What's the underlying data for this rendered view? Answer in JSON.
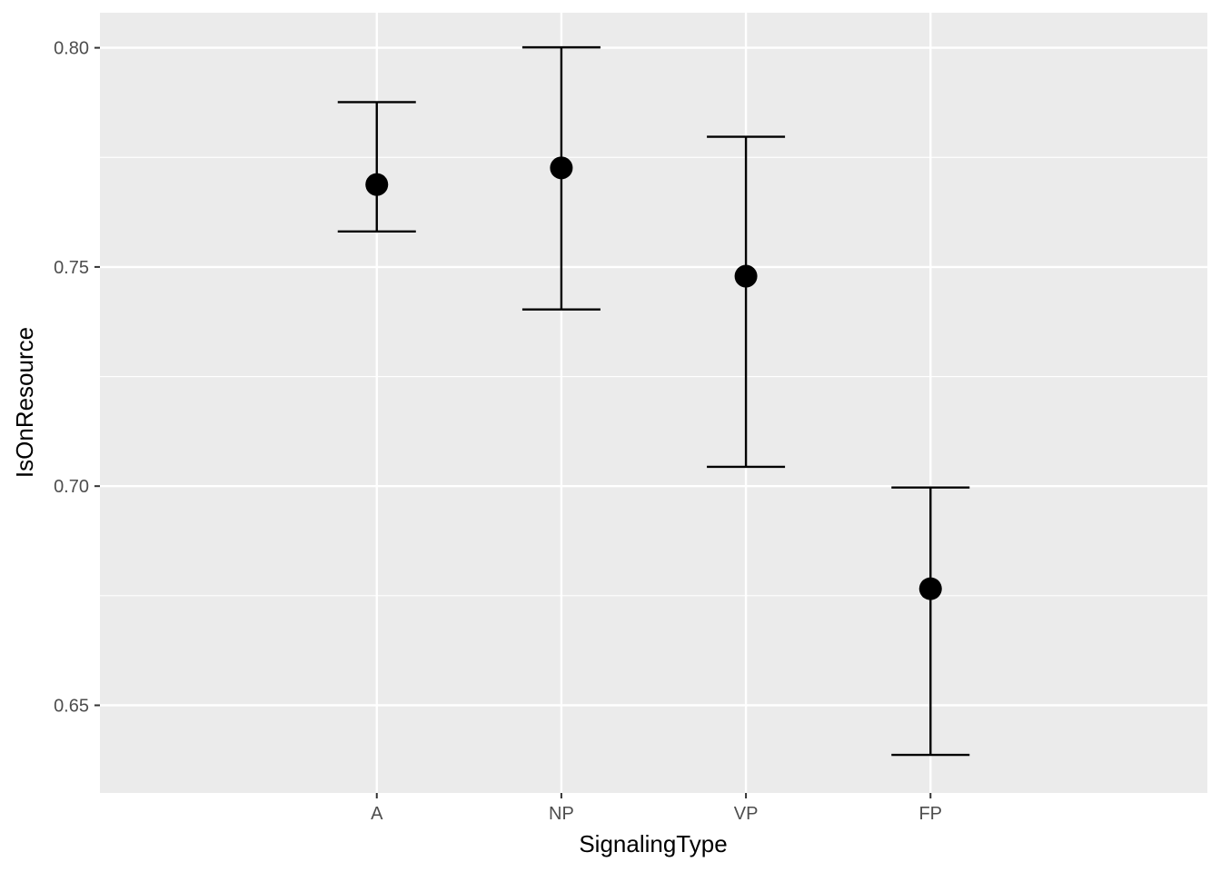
{
  "chart_data": {
    "type": "scatter",
    "subtype": "point-with-errorbars",
    "title": "",
    "xlabel": "SignalingType",
    "ylabel": "IsOnResource",
    "categories": [
      "A",
      "NP",
      "VP",
      "FP"
    ],
    "series": [
      {
        "values": [
          0.7688,
          0.7726,
          0.7479,
          0.6766
        ],
        "lower": [
          0.7581,
          0.7403,
          0.7044,
          0.6387
        ],
        "upper": [
          0.7876,
          0.8001,
          0.7797,
          0.6997
        ]
      }
    ],
    "ylim": [
      0.63,
      0.808
    ],
    "yticks": [
      0.65,
      0.7,
      0.75,
      0.8
    ],
    "ytick_labels": [
      "0.65",
      "0.70",
      "0.75",
      "0.80"
    ],
    "grid": true,
    "legend": "none",
    "colors": {
      "panel_background": "#ebebeb",
      "grid": "#ffffff",
      "marks": "#000000",
      "tick_label": "#4d4d4d"
    }
  }
}
